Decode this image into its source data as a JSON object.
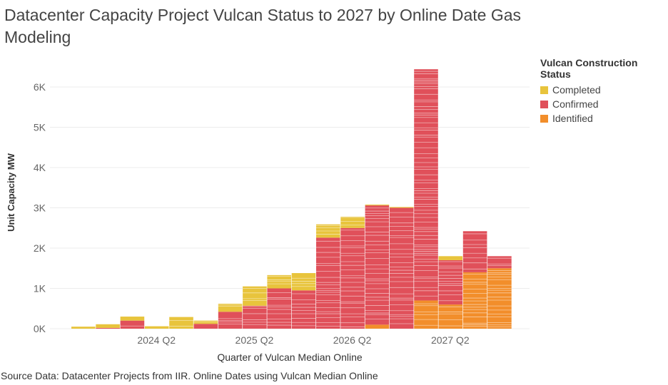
{
  "title": "Datacenter Capacity Project Vulcan Status to 2027 by Online Date Gas Modeling",
  "source": "Source Data: Datacenter Projects from IIR. Online Dates using Vulcan Median Online",
  "legend": {
    "title": "Vulcan Construction Status",
    "items": [
      {
        "label": "Completed",
        "color": "#e8c43c"
      },
      {
        "label": "Confirmed",
        "color": "#e0505a"
      },
      {
        "label": "Identified",
        "color": "#f28e2b"
      }
    ]
  },
  "chart_data": {
    "type": "bar",
    "stacked": true,
    "title": "Datacenter Capacity Project Vulcan Status to 2027 by Online Date Gas Modeling",
    "xlabel": "Quarter of Vulcan Median Online",
    "ylabel": "Unit Capacity MW",
    "ylim": [
      0,
      6500
    ],
    "yticks": [
      0,
      1000,
      2000,
      3000,
      4000,
      5000,
      6000
    ],
    "ytick_labels": [
      "0K",
      "1K",
      "2K",
      "3K",
      "4K",
      "5K",
      "6K"
    ],
    "x_tick_labels": [
      {
        "label": "2024 Q2",
        "index": 3
      },
      {
        "label": "2025 Q2",
        "index": 7
      },
      {
        "label": "2026 Q2",
        "index": 11
      },
      {
        "label": "2027 Q2",
        "index": 15
      }
    ],
    "categories": [
      "2023 Q3",
      "2023 Q4",
      "2024 Q1",
      "2024 Q2",
      "2024 Q3",
      "2024 Q4",
      "2025 Q1",
      "2025 Q2",
      "2025 Q3",
      "2025 Q4",
      "2026 Q1",
      "2026 Q2",
      "2026 Q3",
      "2026 Q4",
      "2027 Q1",
      "2027 Q2",
      "2027 Q3",
      "2027 Q4"
    ],
    "series": [
      {
        "name": "Identified",
        "color": "#f28e2b",
        "values": [
          0,
          0,
          0,
          0,
          0,
          0,
          0,
          0,
          0,
          0,
          0,
          0,
          100,
          0,
          700,
          600,
          1400,
          1500
        ]
      },
      {
        "name": "Confirmed",
        "color": "#e0505a",
        "values": [
          0,
          20,
          200,
          0,
          0,
          120,
          420,
          570,
          1000,
          950,
          2260,
          2500,
          2960,
          3000,
          5740,
          1100,
          1020,
          300
        ]
      },
      {
        "name": "Completed",
        "color": "#e8c43c",
        "values": [
          50,
          90,
          100,
          60,
          290,
          80,
          200,
          480,
          330,
          430,
          330,
          280,
          20,
          20,
          0,
          100,
          0,
          0
        ]
      }
    ]
  }
}
